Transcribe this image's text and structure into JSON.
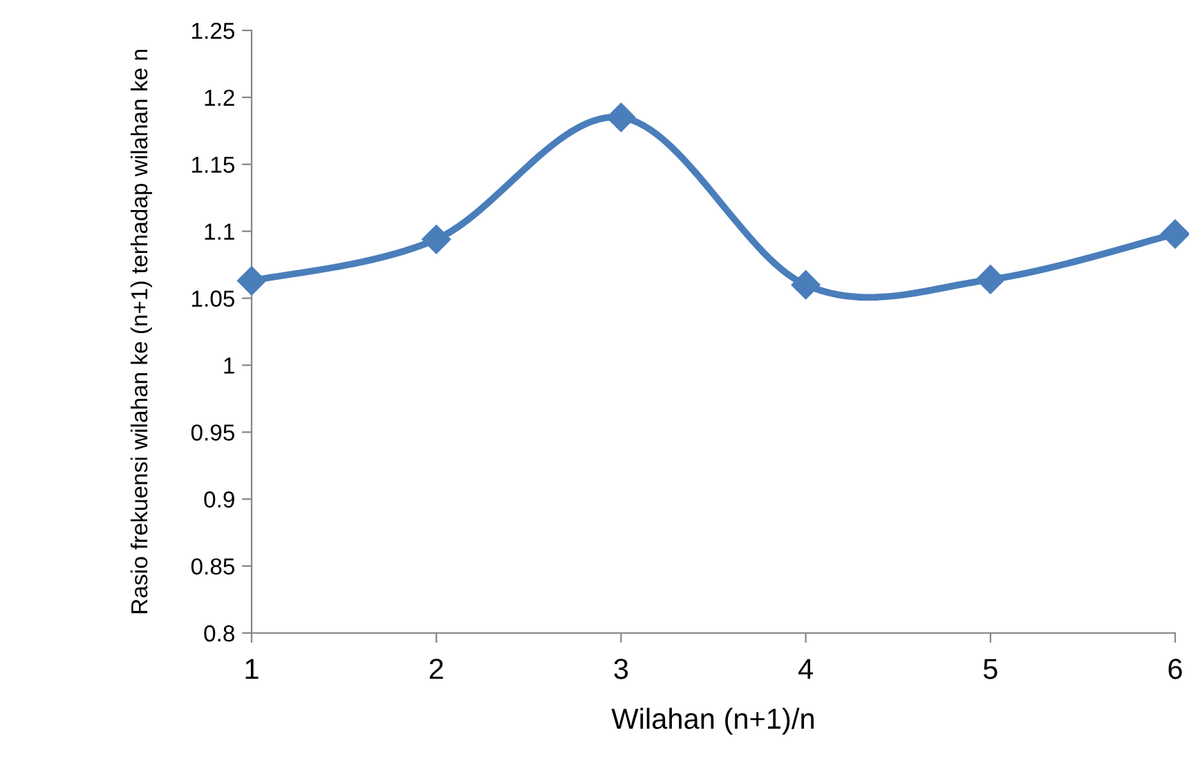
{
  "chart_data": {
    "type": "line",
    "xlabel": "Wilahan (n+1)/n",
    "ylabel": "Rasio frekuensi wilahan ke (n+1) terhadap wilahan ke n",
    "x": [
      1,
      2,
      3,
      4,
      5,
      6
    ],
    "series": [
      {
        "color": "#4a7ebb",
        "values": [
          1.063,
          1.094,
          1.185,
          1.06,
          1.064,
          1.098
        ]
      }
    ],
    "xlim": [
      1,
      6
    ],
    "xticks": [
      1,
      2,
      3,
      4,
      5,
      6
    ],
    "ylim": [
      0.8,
      1.25
    ],
    "yticks": [
      0.8,
      0.85,
      0.9,
      0.95,
      1,
      1.05,
      1.1,
      1.15,
      1.2,
      1.25
    ],
    "grid": false,
    "legend": false,
    "marker": "diamond",
    "line_style": "solid"
  }
}
